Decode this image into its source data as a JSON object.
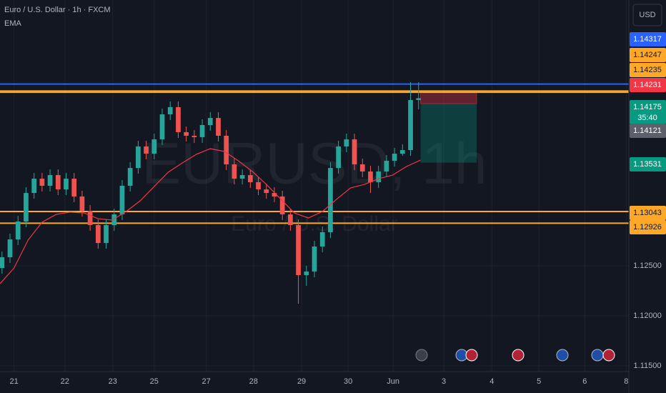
{
  "chart_data": {
    "type": "candlestick",
    "title": "Euro / U.S. Dollar · 1h · FXCM",
    "watermark": "EURUSD, 1h",
    "watermark_subtitle": "Euro / U.S. Dollar",
    "currency": "USD",
    "countdown": "35:40",
    "up_color": "#26a69a",
    "down_color": "#ef5350",
    "x": [
      -6,
      -2,
      2,
      6,
      10,
      14,
      18,
      22,
      26,
      30,
      34,
      38,
      42,
      46,
      50,
      54,
      58,
      62,
      66,
      70,
      74,
      78,
      82,
      86,
      90,
      94,
      98,
      102,
      106,
      110,
      114,
      118,
      122,
      126,
      130,
      134,
      138,
      142,
      146,
      150,
      154,
      158,
      162,
      166,
      170,
      174,
      178,
      182,
      186,
      190,
      194,
      198,
      202
    ],
    "open": [
      1.12478,
      1.12586,
      1.12764,
      1.12943,
      1.13228,
      1.13371,
      1.133,
      1.13407,
      1.13264,
      1.13371,
      1.13193,
      1.1305,
      1.12907,
      1.12728,
      1.12907,
      1.13014,
      1.133,
      1.13478,
      1.13693,
      1.13621,
      1.13764,
      1.14014,
      1.14086,
      1.13836,
      1.138,
      1.13786,
      1.13907,
      1.13978,
      1.138,
      1.13514,
      1.13371,
      1.13407,
      1.13336,
      1.13264,
      1.13228,
      1.13193,
      1.13014,
      1.12907,
      1.12407,
      1.12443,
      1.12693,
      1.12836,
      1.13478,
      1.13693,
      1.13764,
      1.13514,
      1.13443,
      1.13336,
      1.13443,
      1.1355,
      1.13621,
      1.13657,
      1.14157
    ],
    "high": [
      1.12643,
      1.12821,
      1.13,
      1.13286,
      1.13428,
      1.13428,
      1.13464,
      1.13464,
      1.13428,
      1.13428,
      1.1325,
      1.13107,
      1.12964,
      1.12964,
      1.13071,
      1.13357,
      1.13536,
      1.1375,
      1.1375,
      1.13821,
      1.14071,
      1.14143,
      1.14143,
      1.13893,
      1.13857,
      1.13964,
      1.14036,
      1.14036,
      1.13857,
      1.13571,
      1.13464,
      1.13464,
      1.13393,
      1.13321,
      1.13286,
      1.1325,
      1.13071,
      1.12964,
      1.125,
      1.1275,
      1.12893,
      1.13536,
      1.1375,
      1.13821,
      1.13821,
      1.13571,
      1.135,
      1.135,
      1.13607,
      1.13678,
      1.13714,
      1.14336,
      1.14336
    ],
    "low": [
      1.12421,
      1.12528,
      1.12707,
      1.12886,
      1.13171,
      1.13243,
      1.13243,
      1.13207,
      1.13207,
      1.13136,
      1.12993,
      1.1285,
      1.12671,
      1.12671,
      1.1285,
      1.12957,
      1.13243,
      1.13421,
      1.13564,
      1.13564,
      1.13707,
      1.13957,
      1.13778,
      1.13743,
      1.13728,
      1.13728,
      1.1385,
      1.13743,
      1.13457,
      1.13314,
      1.13314,
      1.13278,
      1.13207,
      1.13171,
      1.13136,
      1.12957,
      1.1285,
      1.12121,
      1.123,
      1.12386,
      1.12636,
      1.12778,
      1.13421,
      1.13636,
      1.13457,
      1.13386,
      1.13228,
      1.13278,
      1.13386,
      1.13493,
      1.136,
      1.136,
      1.14064
    ],
    "close": [
      1.12586,
      1.12764,
      1.12943,
      1.13228,
      1.13371,
      1.133,
      1.13407,
      1.13264,
      1.13371,
      1.13193,
      1.1305,
      1.12907,
      1.12728,
      1.12907,
      1.13014,
      1.133,
      1.13478,
      1.13693,
      1.13621,
      1.13764,
      1.14014,
      1.14086,
      1.13836,
      1.138,
      1.13786,
      1.13907,
      1.13978,
      1.138,
      1.13514,
      1.13371,
      1.13407,
      1.13336,
      1.13264,
      1.13228,
      1.13193,
      1.13014,
      1.12907,
      1.12407,
      1.12443,
      1.12693,
      1.12836,
      1.13478,
      1.13693,
      1.13764,
      1.13514,
      1.13443,
      1.13336,
      1.13443,
      1.1355,
      1.13621,
      1.13657,
      1.14157,
      1.14175
    ],
    "series": [
      {
        "name": "EMA",
        "color": "#f23645",
        "x": [
          -7,
          0,
          7,
          14,
          21,
          28,
          35,
          42,
          49,
          56,
          63,
          70,
          77,
          84,
          91,
          98,
          105,
          112,
          119,
          126,
          133,
          140,
          147,
          154,
          161,
          168,
          175,
          182,
          189,
          196,
          203
        ],
        "values": [
          1.12321,
          1.12478,
          1.12757,
          1.12936,
          1.13014,
          1.13036,
          1.13028,
          1.12971,
          1.12957,
          1.13043,
          1.1315,
          1.13293,
          1.13436,
          1.13528,
          1.13614,
          1.13671,
          1.13643,
          1.1355,
          1.13443,
          1.13314,
          1.13171,
          1.13028,
          1.12978,
          1.13043,
          1.13164,
          1.13278,
          1.13314,
          1.13371,
          1.13407,
          1.13493,
          1.13557
        ]
      }
    ],
    "tags": [
      {
        "value": 1.14317,
        "color": "#2962ff",
        "role": "level"
      },
      {
        "value": 1.14247,
        "color": "#ffa726",
        "role": "level"
      },
      {
        "value": 1.14235,
        "color": "#ffa726",
        "role": "level"
      },
      {
        "value": 1.14231,
        "color": "#f23645",
        "role": "stop"
      },
      {
        "value": 1.14175,
        "color": "#089981",
        "role": "last"
      },
      {
        "value": 1.14121,
        "color": "#5d606b",
        "role": "entry"
      },
      {
        "value": 1.13531,
        "color": "#089981",
        "role": "target"
      },
      {
        "value": 1.13043,
        "color": "#ffa726",
        "role": "level"
      },
      {
        "value": 1.12926,
        "color": "#ffa726",
        "role": "level"
      }
    ],
    "position_x": [
      203,
      231
    ],
    "xlim": [
      -7,
      307
    ],
    "ylim": [
      1.11443,
      1.15157
    ],
    "xticks": [
      {
        "value": 0,
        "label": "21"
      },
      {
        "value": 25.4,
        "label": "22"
      },
      {
        "value": 49.3,
        "label": "23"
      },
      {
        "value": 70,
        "label": "25"
      },
      {
        "value": 96,
        "label": "27"
      },
      {
        "value": 119.6,
        "label": "28"
      },
      {
        "value": 143.6,
        "label": "29"
      },
      {
        "value": 166.8,
        "label": "30"
      },
      {
        "value": 189.3,
        "label": "Jun"
      },
      {
        "value": 214.6,
        "label": "3"
      },
      {
        "value": 238.6,
        "label": "4"
      },
      {
        "value": 262.1,
        "label": "5"
      },
      {
        "value": 285,
        "label": "6"
      },
      {
        "value": 305.7,
        "label": "8"
      }
    ],
    "yticks": [
      {
        "value": 1.125,
        "label": "1.12500"
      },
      {
        "value": 1.12,
        "label": "1.12000"
      },
      {
        "value": 1.115,
        "label": "1.11500"
      }
    ],
    "grid": true
  }
}
